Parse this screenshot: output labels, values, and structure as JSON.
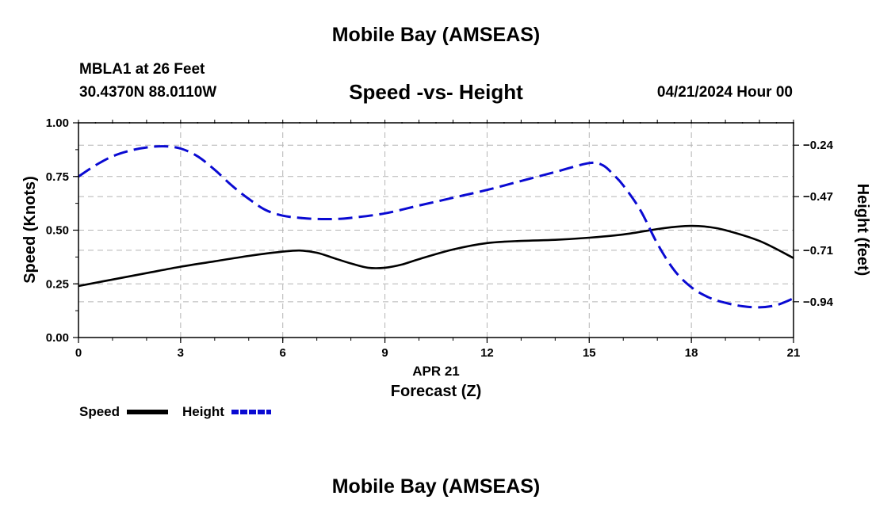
{
  "header": {
    "title": "Mobile Bay (AMSEAS)",
    "station": "MBLA1 at 26 Feet",
    "coords": "30.4370N  88.0110W",
    "subtitle": "Speed -vs- Height",
    "datetime": "04/21/2024 Hour 00"
  },
  "footer": {
    "title": "Mobile Bay (AMSEAS)"
  },
  "colors": {
    "speed": "#000000",
    "height": "#0a0ad2",
    "grid": "#b4b4b4"
  },
  "chart_data": {
    "type": "line",
    "title": "Speed -vs- Height",
    "xlabel": "Forecast (Z)",
    "xdate": "APR 21",
    "ylabel": "Speed (Knots)",
    "y2label": "Height (feet)",
    "xlim": [
      0,
      21
    ],
    "ylim": [
      0,
      1
    ],
    "y2lim": [
      -1.1,
      -0.14
    ],
    "xticks": [
      0,
      3,
      6,
      9,
      12,
      15,
      18,
      21
    ],
    "yticks": [
      0,
      0.25,
      0.5,
      0.75,
      1.0
    ],
    "ytick_labels": [
      "0.00",
      "0.25",
      "0.50",
      "0.75",
      "1.00"
    ],
    "y2ticks": [
      -0.94,
      -0.71,
      -0.47,
      -0.24
    ],
    "y2tick_labels": [
      "−0.94",
      "−0.71",
      "−0.47",
      "−0.24"
    ],
    "grid": true,
    "legend": [
      {
        "name": "Speed",
        "style": "solid"
      },
      {
        "name": "Height",
        "style": "dashed"
      }
    ],
    "series": [
      {
        "name": "Speed",
        "axis": "left",
        "style": "solid",
        "x": [
          0,
          1,
          2,
          3,
          4,
          5,
          6,
          6.5,
          7,
          7.5,
          8,
          8.5,
          9,
          9.5,
          10,
          11,
          12,
          13,
          14,
          15,
          16,
          17,
          17.5,
          18,
          18.5,
          19,
          20,
          21
        ],
        "y": [
          0.24,
          0.27,
          0.3,
          0.33,
          0.355,
          0.38,
          0.4,
          0.405,
          0.395,
          0.37,
          0.345,
          0.325,
          0.325,
          0.34,
          0.365,
          0.41,
          0.44,
          0.45,
          0.455,
          0.465,
          0.48,
          0.505,
          0.515,
          0.52,
          0.515,
          0.5,
          0.45,
          0.37
        ]
      },
      {
        "name": "Height",
        "axis": "right",
        "style": "dashed",
        "x": [
          0,
          0.5,
          1,
          1.5,
          2,
          2.5,
          3,
          3.5,
          4,
          4.5,
          5,
          5.5,
          6,
          6.5,
          7,
          7.5,
          8,
          9,
          10,
          11,
          12,
          13,
          14,
          15,
          15.4,
          15.7,
          16,
          16.5,
          17,
          17.5,
          18,
          18.5,
          19,
          19.5,
          20,
          20.5,
          21
        ],
        "y": [
          -0.38,
          -0.33,
          -0.29,
          -0.265,
          -0.25,
          -0.245,
          -0.255,
          -0.29,
          -0.35,
          -0.42,
          -0.48,
          -0.53,
          -0.555,
          -0.565,
          -0.57,
          -0.57,
          -0.565,
          -0.545,
          -0.51,
          -0.475,
          -0.44,
          -0.4,
          -0.36,
          -0.32,
          -0.33,
          -0.37,
          -0.42,
          -0.53,
          -0.68,
          -0.8,
          -0.875,
          -0.92,
          -0.945,
          -0.96,
          -0.965,
          -0.955,
          -0.925
        ]
      }
    ]
  }
}
